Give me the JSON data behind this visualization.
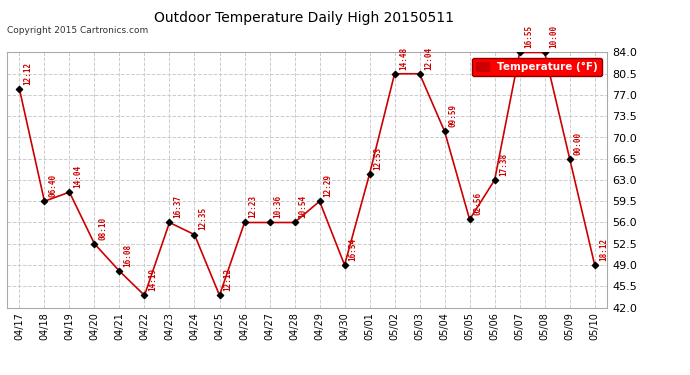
{
  "title": "Outdoor Temperature Daily High 20150511",
  "copyright": "Copyright 2015 Cartronics.com",
  "legend_label": "Temperature (°F)",
  "ylim": [
    42.0,
    84.0
  ],
  "yticks": [
    42.0,
    45.5,
    49.0,
    52.5,
    56.0,
    59.5,
    63.0,
    66.5,
    70.0,
    73.5,
    77.0,
    80.5,
    84.0
  ],
  "background_color": "#ffffff",
  "grid_color": "#cccccc",
  "line_color": "#cc0000",
  "point_color": "#000000",
  "dates": [
    "04/17",
    "04/18",
    "04/19",
    "04/20",
    "04/21",
    "04/22",
    "04/23",
    "04/24",
    "04/25",
    "04/26",
    "04/27",
    "04/28",
    "04/29",
    "04/30",
    "05/01",
    "05/02",
    "05/03",
    "05/04",
    "05/05",
    "05/06",
    "05/07",
    "05/08",
    "05/09",
    "05/10"
  ],
  "values": [
    78.0,
    59.5,
    61.0,
    52.5,
    48.0,
    44.0,
    56.0,
    54.0,
    44.0,
    56.0,
    56.0,
    56.0,
    59.5,
    49.0,
    64.0,
    80.5,
    80.5,
    71.0,
    56.5,
    63.0,
    84.0,
    84.0,
    66.5,
    49.0
  ],
  "time_labels": [
    "12:12",
    "06:40",
    "14:04",
    "08:10",
    "16:08",
    "14:19",
    "16:37",
    "12:35",
    "12:12",
    "12:23",
    "10:36",
    "10:54",
    "12:29",
    "16:54",
    "12:53",
    "14:48",
    "12:04",
    "09:59",
    "02:56",
    "17:38",
    "16:55",
    "10:00",
    "00:00",
    "18:12"
  ]
}
